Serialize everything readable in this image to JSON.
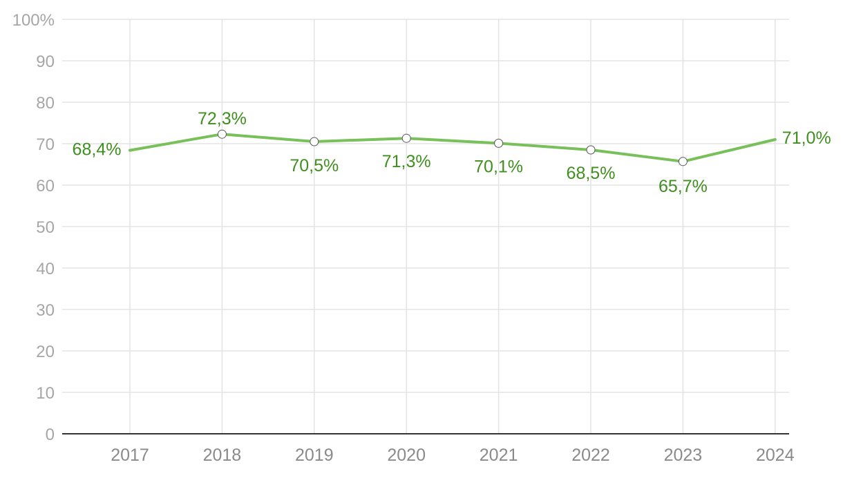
{
  "chart_data": {
    "type": "line",
    "title": "",
    "xlabel": "",
    "ylabel": "",
    "categories": [
      "2017",
      "2018",
      "2019",
      "2020",
      "2021",
      "2022",
      "2023",
      "2024"
    ],
    "series": [
      {
        "values": [
          68.4,
          72.3,
          70.5,
          71.3,
          70.1,
          68.5,
          65.7,
          71.0
        ],
        "labels": [
          "68,4%",
          "72,3%",
          "70,5%",
          "71,3%",
          "70,1%",
          "68,5%",
          "65,7%",
          "71,0%"
        ],
        "color": "#77c05a",
        "label_color": "#3f8f1f"
      }
    ],
    "ylim": [
      0,
      100
    ],
    "yticks": [
      "0",
      "10",
      "20",
      "30",
      "40",
      "50",
      "60",
      "70",
      "80",
      "90",
      "100%"
    ],
    "grid": true,
    "legend": "none"
  }
}
